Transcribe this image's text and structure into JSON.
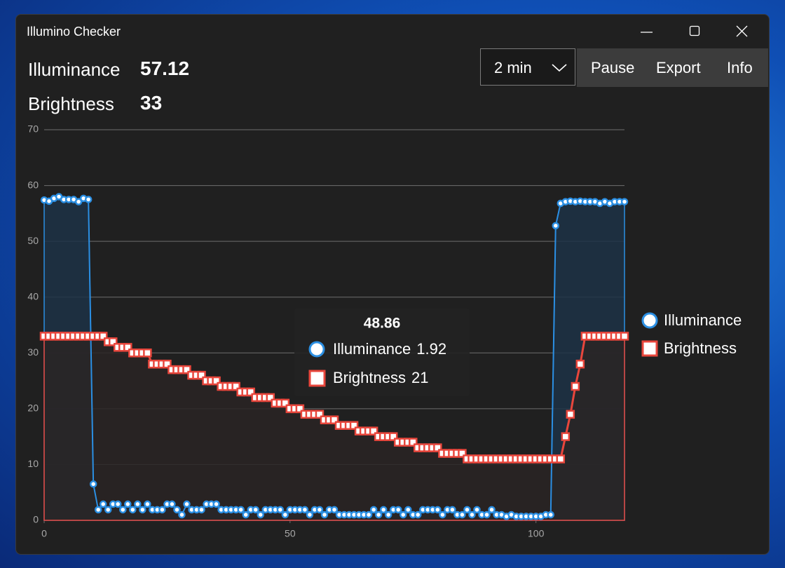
{
  "window_title": "Illumino Checker",
  "readouts": [
    {
      "label": "Illuminance",
      "value": 57.12
    },
    {
      "label": "Brightness",
      "value": 33
    }
  ],
  "controls": {
    "range": "2 min",
    "buttons": [
      "Pause",
      "Export",
      "Info"
    ]
  },
  "chart_data": {
    "type": "line",
    "x": [
      0,
      1,
      2,
      3,
      4,
      5,
      6,
      7,
      8,
      9,
      10,
      11,
      12,
      13,
      14,
      15,
      16,
      17,
      18,
      19,
      20,
      21,
      22,
      23,
      24,
      25,
      26,
      27,
      28,
      29,
      30,
      31,
      32,
      33,
      34,
      35,
      36,
      37,
      38,
      39,
      40,
      41,
      42,
      43,
      44,
      45,
      46,
      47,
      48,
      49,
      50,
      51,
      52,
      53,
      54,
      55,
      56,
      57,
      58,
      59,
      60,
      61,
      62,
      63,
      64,
      65,
      66,
      67,
      68,
      69,
      70,
      71,
      72,
      73,
      74,
      75,
      76,
      77,
      78,
      79,
      80,
      81,
      82,
      83,
      84,
      85,
      86,
      87,
      88,
      89,
      90,
      91,
      92,
      93,
      94,
      95,
      96,
      97,
      98,
      99,
      100,
      101,
      102,
      103,
      104,
      105,
      106,
      107,
      108,
      109,
      110,
      111,
      112,
      113,
      114,
      115,
      116,
      117,
      118
    ],
    "series": [
      {
        "name": "Illuminance",
        "color": "#2b8fe3",
        "fill": "#1d3347",
        "marker": "circle",
        "values": [
          57.4,
          57.2,
          57.7,
          58.0,
          57.5,
          57.5,
          57.5,
          57.1,
          57.7,
          57.5,
          6.5,
          1.9,
          2.9,
          1.9,
          2.9,
          2.9,
          1.9,
          2.9,
          1.9,
          2.9,
          1.9,
          2.9,
          1.9,
          1.9,
          1.9,
          2.9,
          2.9,
          1.9,
          1.0,
          2.9,
          1.9,
          1.9,
          1.9,
          2.9,
          2.9,
          2.9,
          1.9,
          1.9,
          1.9,
          1.9,
          1.9,
          1.0,
          1.9,
          1.9,
          1.0,
          1.9,
          1.9,
          1.9,
          1.9,
          1.0,
          1.9,
          1.9,
          1.9,
          1.9,
          1.0,
          1.9,
          1.9,
          1.0,
          1.9,
          1.9,
          1.0,
          1.0,
          1.0,
          1.0,
          1.0,
          1.0,
          1.0,
          1.9,
          1.0,
          1.9,
          1.0,
          1.9,
          1.9,
          1.0,
          1.9,
          1.0,
          1.0,
          1.9,
          1.9,
          1.9,
          1.9,
          1.0,
          1.9,
          1.9,
          1.0,
          1.0,
          1.9,
          1.0,
          1.9,
          1.0,
          1.0,
          1.9,
          1.0,
          1.0,
          0.7,
          1.0,
          0.7,
          0.7,
          0.7,
          0.7,
          0.7,
          0.7,
          1.0,
          1.0,
          52.8,
          56.8,
          57.1,
          57.2,
          57.1,
          57.2,
          57.1,
          57.1,
          57.1,
          56.8,
          57.1,
          56.8,
          57.1,
          57.1,
          57.1
        ]
      },
      {
        "name": "Brightness",
        "color": "#e8463c",
        "fill": "#2a2424",
        "marker": "square",
        "values": [
          33,
          33,
          33,
          33,
          33,
          33,
          33,
          33,
          33,
          33,
          33,
          33,
          33,
          32,
          32,
          31,
          31,
          31,
          30,
          30,
          30,
          30,
          28,
          28,
          28,
          28,
          27,
          27,
          27,
          27,
          26,
          26,
          26,
          25,
          25,
          25,
          24,
          24,
          24,
          24,
          23,
          23,
          23,
          22,
          22,
          22,
          22,
          21,
          21,
          21,
          20,
          20,
          20,
          19,
          19,
          19,
          19,
          18,
          18,
          18,
          17,
          17,
          17,
          17,
          16,
          16,
          16,
          16,
          15,
          15,
          15,
          15,
          14,
          14,
          14,
          14,
          13,
          13,
          13,
          13,
          13,
          12,
          12,
          12,
          12,
          12,
          11,
          11,
          11,
          11,
          11,
          11,
          11,
          11,
          11,
          11,
          11,
          11,
          11,
          11,
          11,
          11,
          11,
          11,
          11,
          11,
          15,
          19,
          24,
          28,
          33,
          33,
          33,
          33,
          33,
          33,
          33,
          33,
          33
        ]
      }
    ],
    "xlim": [
      0,
      118
    ],
    "ylim": [
      0,
      70
    ],
    "xticks": [
      0,
      50,
      100
    ],
    "yticks": [
      0,
      10,
      20,
      30,
      40,
      50,
      60,
      70
    ],
    "grid": true,
    "legend": "right",
    "tooltip": {
      "x": 48.86,
      "items": [
        {
          "name": "Illuminance",
          "value": 1.92
        },
        {
          "name": "Brightness",
          "value": 21
        }
      ]
    }
  }
}
